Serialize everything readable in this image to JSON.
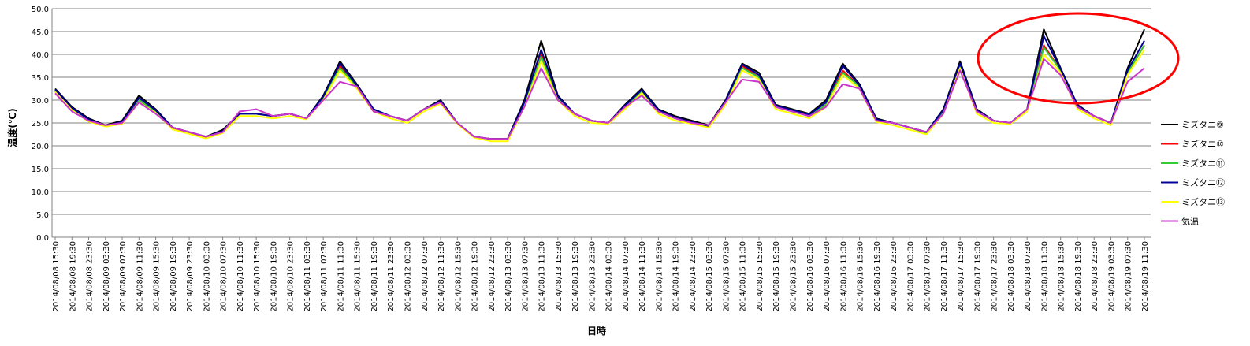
{
  "chart_data": {
    "type": "line",
    "xlabel": "日時",
    "ylabel": "温度(℃)",
    "ylim": [
      0,
      50
    ],
    "y_ticks": [
      "0.0",
      "5.0",
      "10.0",
      "15.0",
      "20.0",
      "25.0",
      "30.0",
      "35.0",
      "40.0",
      "45.0",
      "50.0"
    ],
    "grid": "horizontal",
    "legend_position": "right",
    "x": [
      "2014/08/08 15:30",
      "2014/08/08 19:30",
      "2014/08/08 23:30",
      "2014/08/09 03:30",
      "2014/08/09 07:30",
      "2014/08/09 11:30",
      "2014/08/09 15:30",
      "2014/08/09 19:30",
      "2014/08/09 23:30",
      "2014/08/10 03:30",
      "2014/08/10 07:30",
      "2014/08/10 11:30",
      "2014/08/10 15:30",
      "2014/08/10 19:30",
      "2014/08/10 23:30",
      "2014/08/11 03:30",
      "2014/08/11 07:30",
      "2014/08/11 11:30",
      "2014/08/11 15:30",
      "2014/08/11 19:30",
      "2014/08/11 23:30",
      "2014/08/12 03:30",
      "2014/08/12 07:30",
      "2014/08/12 11:30",
      "2014/08/12 15:30",
      "2014/08/12 19:30",
      "2014/08/12 23:30",
      "2014/08/13 03:30",
      "2014/08/13 07:30",
      "2014/08/13 11:30",
      "2014/08/13 15:30",
      "2014/08/13 19:30",
      "2014/08/13 23:30",
      "2014/08/14 03:30",
      "2014/08/14 07:30",
      "2014/08/14 11:30",
      "2014/08/14 15:30",
      "2014/08/14 19:30",
      "2014/08/14 23:30",
      "2014/08/15 03:30",
      "2014/08/15 07:30",
      "2014/08/15 11:30",
      "2014/08/15 15:30",
      "2014/08/15 19:30",
      "2014/08/15 23:30",
      "2014/08/16 03:30",
      "2014/08/16 07:30",
      "2014/08/16 11:30",
      "2014/08/16 15:30",
      "2014/08/16 19:30",
      "2014/08/16 23:30",
      "2014/08/17 03:30",
      "2014/08/17 07:30",
      "2014/08/17 11:30",
      "2014/08/17 15:30",
      "2014/08/17 19:30",
      "2014/08/17 23:30",
      "2014/08/18 03:30",
      "2014/08/18 07:30",
      "2014/08/18 11:30",
      "2014/08/18 15:30",
      "2014/08/18 19:30",
      "2014/08/18 23:30",
      "2014/08/19 03:30",
      "2014/08/19 07:30",
      "2014/08/19 11:30"
    ],
    "series": [
      {
        "name": "ミズタニ⑨",
        "color": "#000000",
        "values": [
          32.5,
          28.5,
          26.0,
          24.5,
          25.5,
          31.0,
          28.0,
          24.0,
          23.0,
          22.0,
          23.5,
          27.0,
          27.0,
          26.5,
          27.0,
          26.0,
          31.0,
          38.5,
          33.5,
          28.0,
          26.5,
          25.5,
          28.0,
          30.0,
          25.0,
          22.0,
          21.5,
          21.5,
          30.0,
          43.0,
          31.0,
          27.0,
          25.5,
          25.0,
          29.0,
          32.5,
          28.0,
          26.5,
          25.5,
          24.5,
          30.0,
          38.0,
          36.0,
          29.0,
          28.0,
          27.0,
          30.0,
          38.0,
          33.5,
          26.0,
          25.0,
          24.0,
          23.0,
          28.0,
          38.5,
          28.0,
          25.5,
          25.0,
          28.0,
          45.5,
          37.0,
          29.0,
          26.5,
          25.0,
          37.0,
          45.5
        ]
      },
      {
        "name": "ミズタニ⑩",
        "color": "#ff0000",
        "values": [
          32.0,
          28.0,
          25.5,
          24.3,
          25.0,
          30.0,
          27.5,
          23.8,
          22.8,
          21.8,
          23.0,
          27.0,
          27.0,
          26.5,
          27.0,
          26.0,
          30.5,
          37.5,
          33.0,
          27.5,
          26.5,
          25.5,
          28.0,
          29.5,
          25.0,
          22.0,
          21.5,
          21.5,
          29.0,
          40.0,
          30.5,
          27.0,
          25.5,
          25.0,
          28.5,
          32.0,
          27.5,
          26.0,
          25.0,
          24.2,
          29.5,
          37.5,
          35.0,
          28.5,
          27.5,
          26.5,
          29.0,
          36.5,
          33.0,
          25.5,
          25.0,
          24.0,
          22.8,
          27.5,
          37.5,
          27.5,
          25.5,
          25.0,
          28.0,
          42.0,
          36.5,
          28.5,
          26.5,
          25.0,
          36.0,
          42.0
        ]
      },
      {
        "name": "ミズタニ⑪",
        "color": "#33cc33",
        "values": [
          32.0,
          28.0,
          25.5,
          24.3,
          25.0,
          30.0,
          27.5,
          24.0,
          23.0,
          22.0,
          23.0,
          27.0,
          27.0,
          26.5,
          27.0,
          26.0,
          30.5,
          37.0,
          33.0,
          28.0,
          26.5,
          25.5,
          28.0,
          29.5,
          25.0,
          22.0,
          21.5,
          21.5,
          29.0,
          39.5,
          30.5,
          27.0,
          25.5,
          25.0,
          28.5,
          32.0,
          27.5,
          26.0,
          25.0,
          24.2,
          29.5,
          37.0,
          35.0,
          28.5,
          27.5,
          26.5,
          29.0,
          36.0,
          33.0,
          25.5,
          25.0,
          24.0,
          22.8,
          27.5,
          37.5,
          27.5,
          25.5,
          25.0,
          28.0,
          41.5,
          36.5,
          28.5,
          26.5,
          25.0,
          36.0,
          42.0
        ]
      },
      {
        "name": "ミズタニ⑫",
        "color": "#000099",
        "values": [
          32.3,
          28.3,
          25.8,
          24.4,
          25.2,
          30.5,
          27.8,
          24.0,
          23.0,
          22.0,
          23.2,
          27.0,
          27.0,
          26.5,
          27.0,
          26.0,
          30.8,
          38.0,
          33.2,
          28.0,
          26.5,
          25.5,
          28.0,
          29.8,
          25.0,
          22.0,
          21.5,
          21.5,
          29.5,
          41.0,
          30.8,
          27.0,
          25.5,
          25.0,
          28.8,
          32.2,
          27.8,
          26.2,
          25.2,
          24.3,
          29.8,
          37.8,
          35.5,
          28.8,
          27.8,
          26.8,
          29.5,
          37.5,
          33.2,
          25.8,
          25.0,
          24.0,
          23.0,
          27.8,
          38.0,
          27.8,
          25.5,
          25.0,
          28.0,
          44.0,
          36.8,
          28.8,
          26.5,
          25.0,
          36.5,
          43.0
        ]
      },
      {
        "name": "ミズタニ⑬",
        "color": "#ffff00",
        "values": [
          31.8,
          27.8,
          25.3,
          24.2,
          24.8,
          29.5,
          27.2,
          23.6,
          22.6,
          21.6,
          22.8,
          26.5,
          26.5,
          26.0,
          26.5,
          25.8,
          30.0,
          36.5,
          32.5,
          27.5,
          26.0,
          25.0,
          27.5,
          29.2,
          24.8,
          21.8,
          21.0,
          21.0,
          28.5,
          38.5,
          30.0,
          26.5,
          25.0,
          24.8,
          28.0,
          31.5,
          27.0,
          25.5,
          24.8,
          24.0,
          29.0,
          36.5,
          34.5,
          28.0,
          27.0,
          26.0,
          28.5,
          35.5,
          32.5,
          25.2,
          24.5,
          23.5,
          22.5,
          27.0,
          37.0,
          27.0,
          25.0,
          24.8,
          27.5,
          40.0,
          36.0,
          28.0,
          26.0,
          24.5,
          35.5,
          41.0
        ]
      },
      {
        "name": "気温",
        "color": "#cc33cc",
        "values": [
          31.5,
          27.5,
          25.5,
          24.5,
          25.0,
          29.5,
          27.0,
          24.0,
          23.0,
          22.0,
          23.0,
          27.5,
          28.0,
          26.5,
          27.0,
          26.0,
          30.0,
          34.0,
          33.0,
          27.5,
          26.5,
          25.5,
          28.0,
          29.5,
          25.0,
          22.0,
          21.5,
          21.5,
          28.5,
          37.0,
          30.0,
          27.0,
          25.5,
          25.0,
          28.5,
          31.0,
          27.5,
          26.0,
          25.0,
          24.5,
          29.5,
          34.5,
          34.0,
          28.5,
          27.5,
          26.5,
          28.5,
          33.5,
          32.5,
          25.5,
          25.0,
          24.0,
          23.0,
          27.0,
          36.5,
          27.5,
          25.5,
          25.0,
          28.0,
          39.0,
          35.5,
          28.5,
          26.5,
          25.0,
          34.0,
          37.0
        ]
      }
    ]
  }
}
